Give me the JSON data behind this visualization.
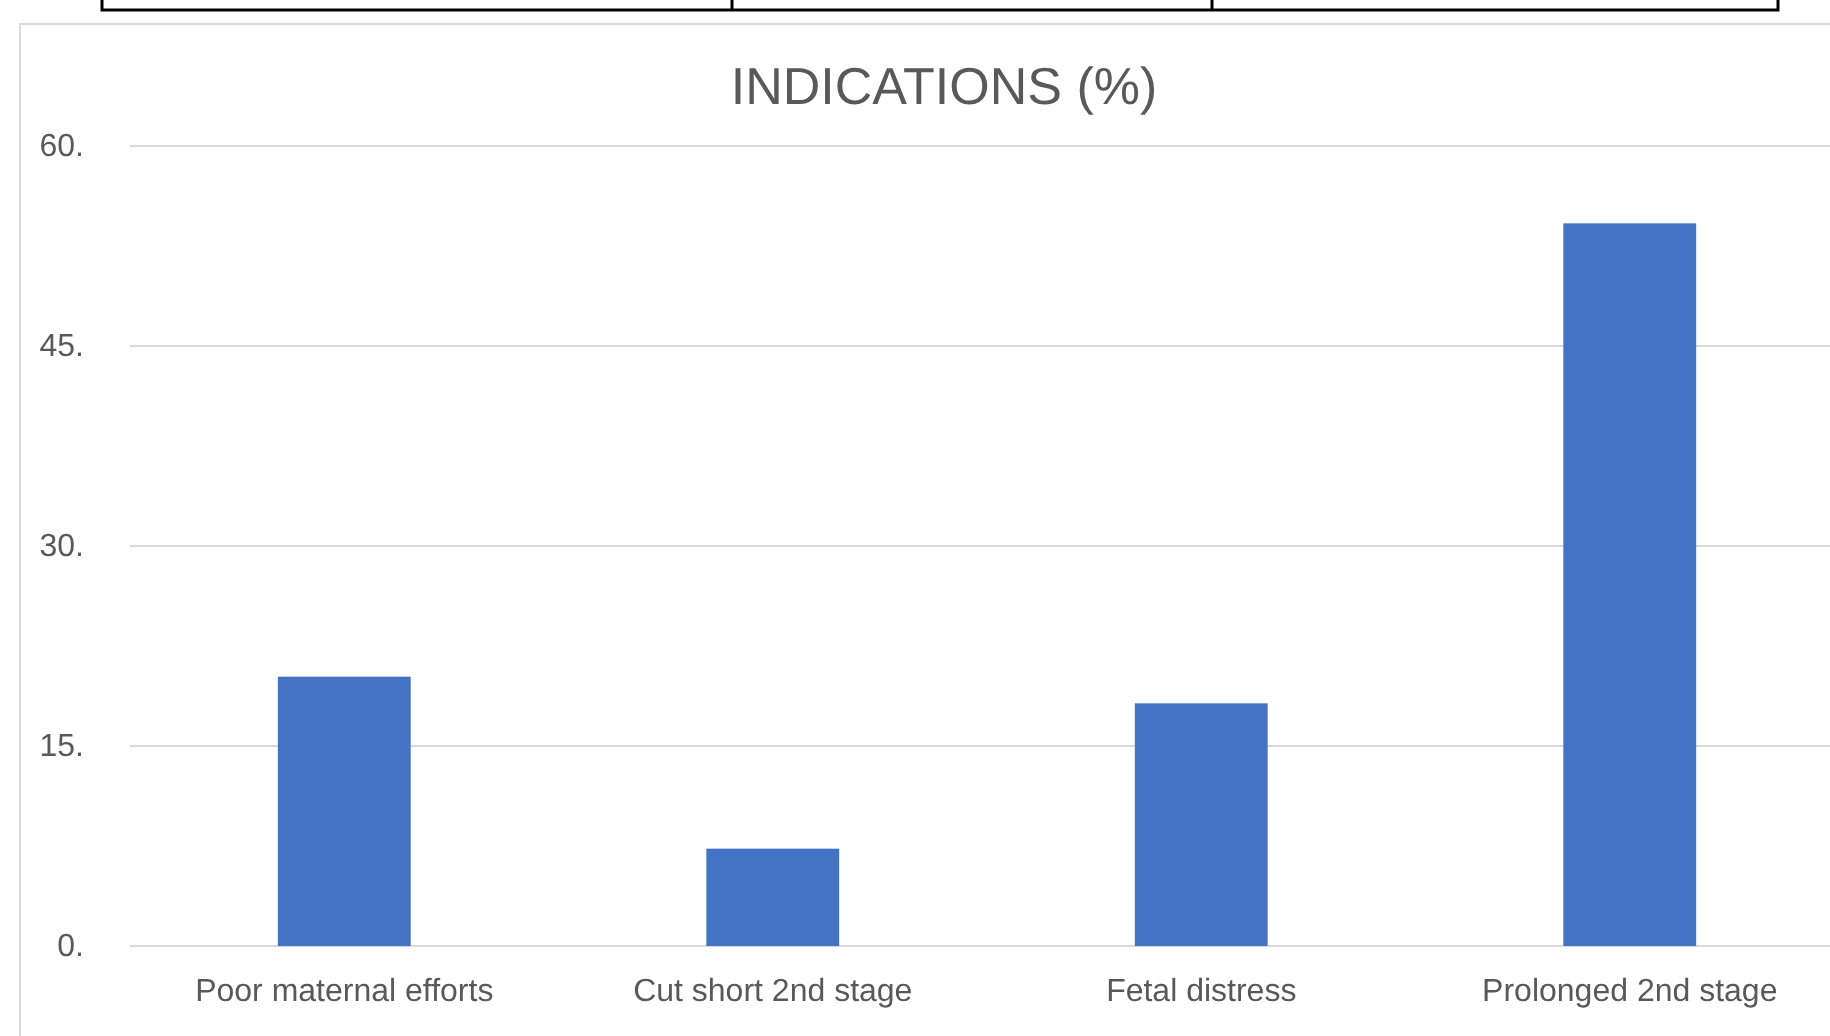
{
  "chart_data": {
    "type": "bar",
    "title": "INDICATIONS (%)",
    "categories": [
      "Poor maternal efforts",
      "Cut short 2nd stage",
      "Fetal distress",
      "Prolonged 2nd stage"
    ],
    "values": [
      20.2,
      7.3,
      18.2,
      54.2
    ],
    "color": "#4472c4",
    "ylim": [
      0,
      60
    ],
    "yticks": [
      {
        "value": 0,
        "label": "0."
      },
      {
        "value": 15,
        "label": "15."
      },
      {
        "value": 30,
        "label": "30."
      },
      {
        "value": 45,
        "label": "45."
      },
      {
        "value": 60,
        "label": "60."
      }
    ],
    "grid": "y"
  }
}
